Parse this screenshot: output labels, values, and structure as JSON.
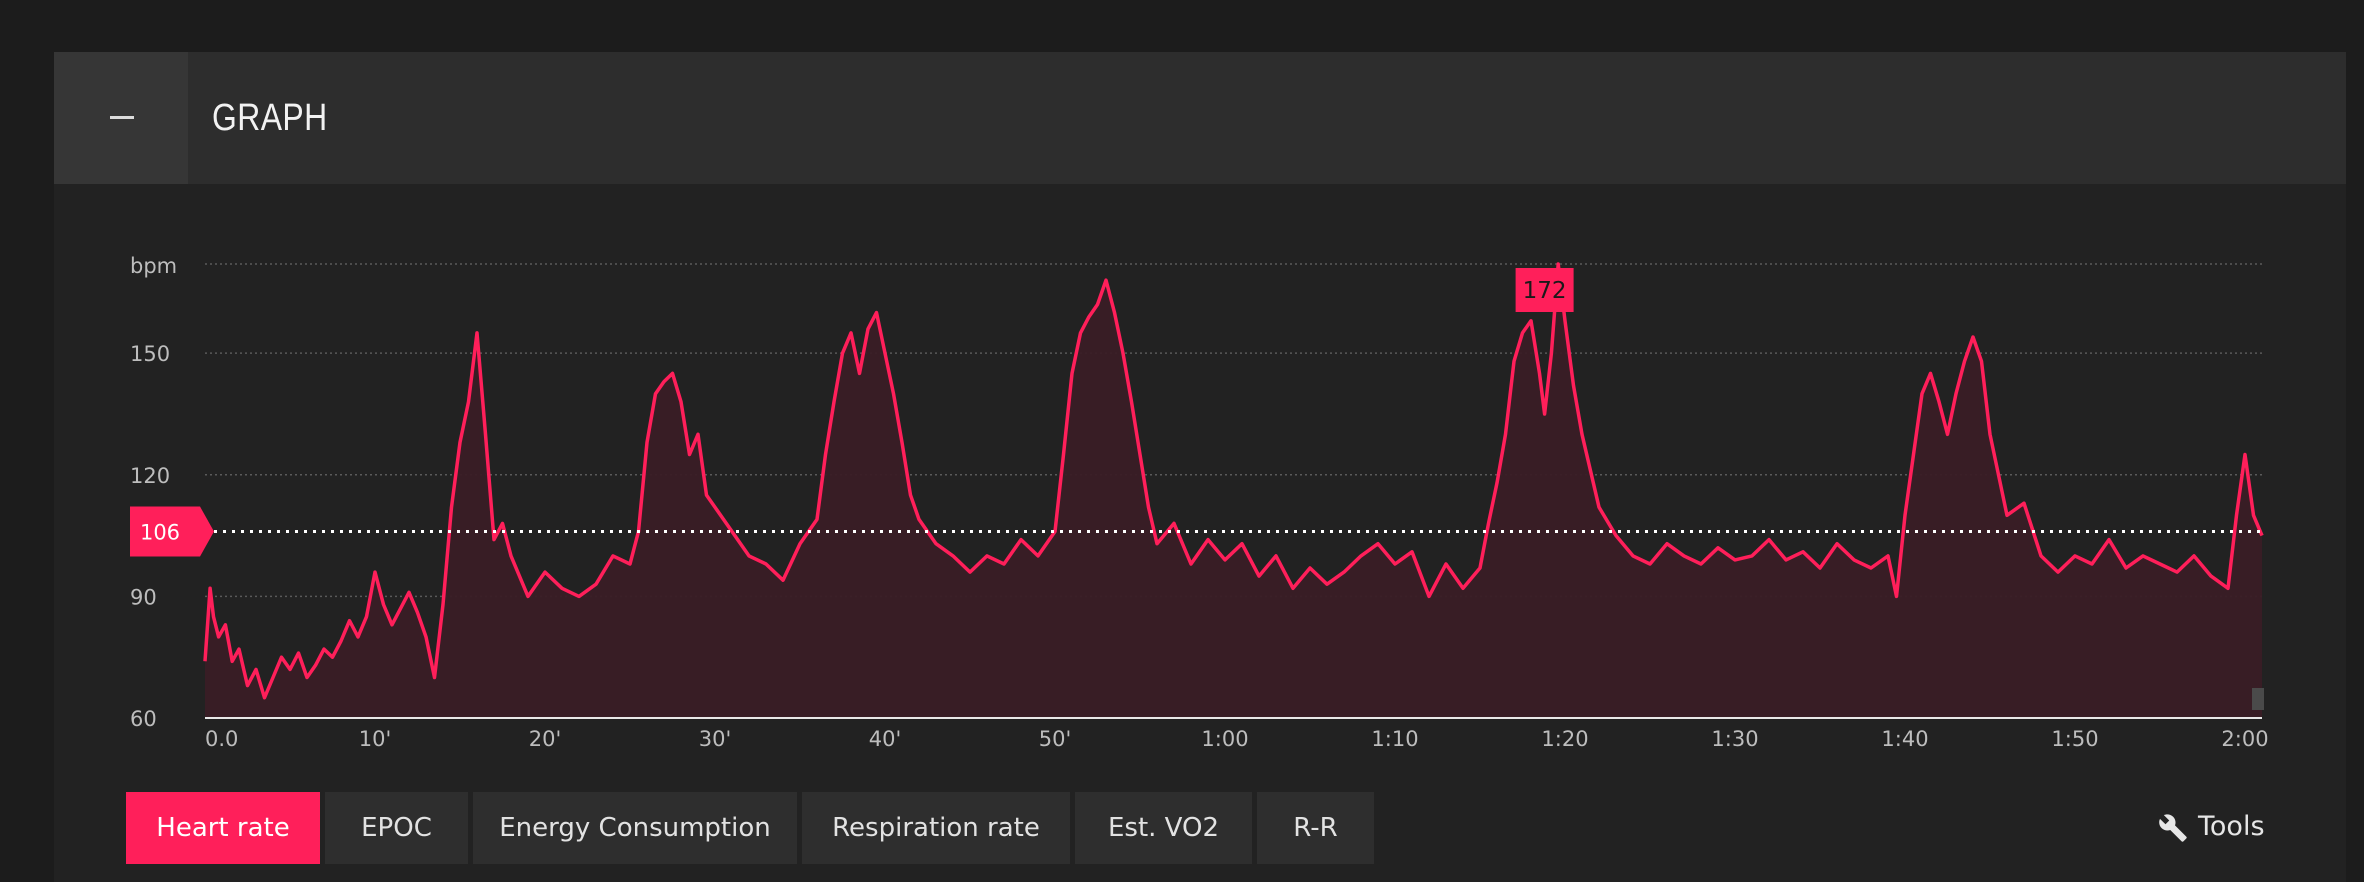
{
  "panel": {
    "title": "GRAPH",
    "collapse_icon": "minus-icon"
  },
  "chart_data": {
    "type": "line",
    "title": "",
    "ylabel": "bpm",
    "xlabel": "",
    "ylim": [
      60,
      172
    ],
    "y_ticks": [
      60,
      90,
      120,
      150
    ],
    "x_range_minutes": [
      0,
      121
    ],
    "x_tick_labels": [
      "0.0",
      "10'",
      "20'",
      "30'",
      "40'",
      "50'",
      "1:00",
      "1:10",
      "1:20",
      "1:30",
      "1:40",
      "1:50",
      "2:00"
    ],
    "x_tick_minutes": [
      0,
      10,
      20,
      30,
      40,
      50,
      60,
      70,
      80,
      90,
      100,
      110,
      120
    ],
    "average_value": 106,
    "peak_value": 172,
    "peak_time_minutes": 78.8,
    "grid": true,
    "colors": {
      "line": "#ff1f5a",
      "fill": "#3a1d26",
      "grid": "#5a5a5a",
      "average_line": "#ffffff",
      "badge": "#ff1f5a"
    },
    "series": [
      {
        "x": [
          0,
          0.3,
          0.5,
          0.8,
          1.2,
          1.6,
          2,
          2.5,
          3,
          3.5,
          4,
          4.5,
          5,
          5.5,
          6,
          6.5,
          7,
          7.5,
          8,
          8.5,
          9,
          9.5,
          10,
          10.5,
          11,
          11.5,
          12,
          12.5,
          13,
          13.5,
          14,
          14.5,
          15,
          15.5,
          16,
          16.5,
          17,
          17.5,
          18,
          19,
          20,
          21,
          22,
          23,
          24,
          25,
          25.5,
          26,
          26.5,
          27,
          27.5,
          28,
          28.5,
          29,
          29.5,
          30,
          31,
          32,
          33,
          34,
          35,
          36,
          36.5,
          37,
          37.5,
          38,
          38.5,
          39,
          39.5,
          40,
          40.5,
          41,
          41.5,
          42,
          43,
          44,
          45,
          46,
          47,
          48,
          49,
          50,
          50.5,
          51,
          51.5,
          52,
          52.5,
          53,
          53.5,
          54,
          54.5,
          55,
          55.5,
          56,
          57,
          58,
          59,
          60,
          61,
          62,
          63,
          64,
          65,
          66,
          67,
          68,
          69,
          70,
          71,
          72,
          73,
          74,
          75,
          75.5,
          76,
          76.5,
          77,
          77.5,
          78,
          78.5,
          78.8,
          79.2,
          79.6,
          80,
          80.5,
          81,
          82,
          83,
          84,
          85,
          86,
          87,
          88,
          89,
          90,
          91,
          92,
          93,
          94,
          95,
          96,
          97,
          98,
          99,
          99.5,
          100,
          100.5,
          101,
          101.5,
          102,
          102.5,
          103,
          103.5,
          104,
          104.5,
          105,
          105.5,
          106,
          107,
          108,
          109,
          110,
          111,
          112,
          113,
          114,
          115,
          116,
          117,
          118,
          119,
          119.5,
          120,
          120.5,
          121
        ],
        "values": [
          74,
          92,
          85,
          80,
          83,
          74,
          77,
          68,
          72,
          65,
          70,
          75,
          72,
          76,
          70,
          73,
          77,
          75,
          79,
          84,
          80,
          85,
          96,
          88,
          83,
          87,
          91,
          86,
          80,
          70,
          88,
          112,
          128,
          138,
          155,
          130,
          104,
          108,
          100,
          90,
          96,
          92,
          90,
          93,
          100,
          98,
          106,
          128,
          140,
          143,
          145,
          138,
          125,
          130,
          115,
          112,
          106,
          100,
          98,
          94,
          103,
          109,
          125,
          138,
          150,
          155,
          145,
          156,
          160,
          150,
          140,
          128,
          115,
          109,
          103,
          100,
          96,
          100,
          98,
          104,
          100,
          106,
          125,
          145,
          155,
          159,
          162,
          168,
          160,
          150,
          138,
          125,
          112,
          103,
          108,
          98,
          104,
          99,
          103,
          95,
          100,
          92,
          97,
          93,
          96,
          100,
          103,
          98,
          101,
          90,
          98,
          92,
          97,
          108,
          118,
          130,
          148,
          155,
          158,
          145,
          135,
          150,
          172,
          158,
          142,
          130,
          112,
          105,
          100,
          98,
          103,
          100,
          98,
          102,
          99,
          100,
          104,
          99,
          101,
          97,
          103,
          99,
          97,
          100,
          90,
          110,
          125,
          140,
          145,
          138,
          130,
          140,
          148,
          154,
          148,
          130,
          120,
          110,
          113,
          100,
          96,
          100,
          98,
          104,
          97,
          100,
          98,
          96,
          100,
          95,
          92,
          110,
          125,
          110,
          105
        ]
      }
    ]
  },
  "tabs": [
    {
      "label": "Heart rate",
      "active": true
    },
    {
      "label": "EPOC",
      "active": false
    },
    {
      "label": "Energy Consumption",
      "active": false
    },
    {
      "label": "Respiration rate",
      "active": false
    },
    {
      "label": "Est. VO2",
      "active": false
    },
    {
      "label": "R-R",
      "active": false
    }
  ],
  "tools": {
    "label": "Tools",
    "icon": "wrench-icon"
  }
}
